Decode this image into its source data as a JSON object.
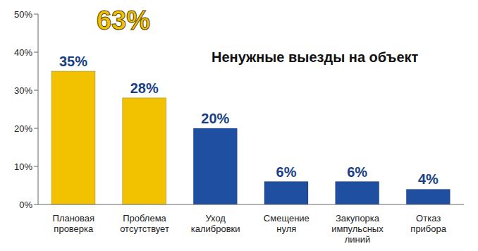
{
  "chart_data": {
    "type": "bar",
    "title": "Ненужные выезды на объект",
    "annotation": "63%",
    "categories": [
      "Плановая проверка",
      "Проблема отсутствует",
      "Уход калибровки",
      "Смещение нуля",
      "Закупорка импульсных линий",
      "Отказ прибора"
    ],
    "values": [
      35,
      28,
      20,
      6,
      6,
      4
    ],
    "value_labels": [
      "35%",
      "28%",
      "20%",
      "6%",
      "6%",
      "4%"
    ],
    "data_labels": true,
    "colors": [
      "#f2c200",
      "#f2c200",
      "#1f4fa0",
      "#1f4fa0",
      "#1f4fa0",
      "#1f4fa0"
    ],
    "ylim": [
      0,
      50
    ],
    "yticks": [
      {
        "value": 0,
        "label": "0%"
      },
      {
        "value": 10,
        "label": "10%"
      },
      {
        "value": 20,
        "label": "20%"
      },
      {
        "value": 30,
        "label": "30%"
      },
      {
        "value": 40,
        "label": "40%"
      },
      {
        "value": 50,
        "label": "50%"
      }
    ],
    "grid": false
  }
}
